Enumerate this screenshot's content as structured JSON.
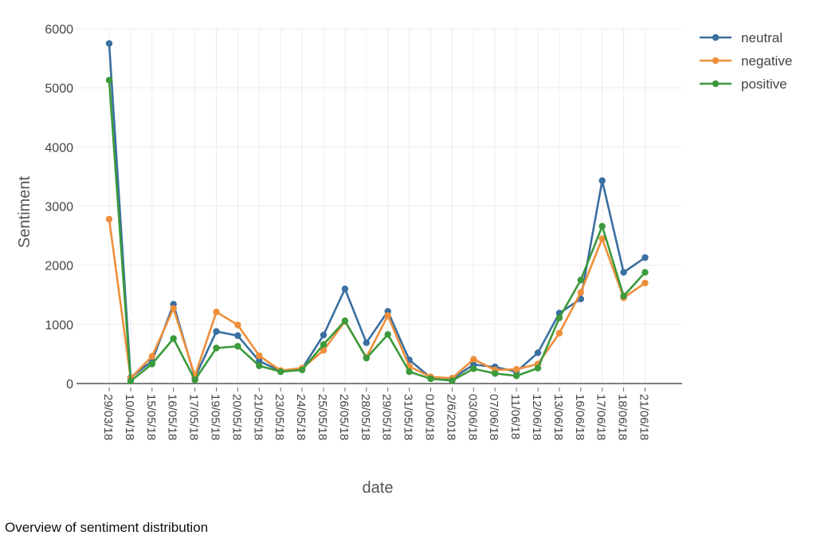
{
  "caption": "Overview of sentiment distribution",
  "chart_data": {
    "type": "line",
    "xlabel": "date",
    "ylabel": "Sentiment",
    "ylim": [
      0,
      6000
    ],
    "yticks": [
      0,
      1000,
      2000,
      3000,
      4000,
      5000,
      6000
    ],
    "grid": true,
    "legend_position": "top-right",
    "categories": [
      "29/03/18",
      "10/04/18",
      "15/05/18",
      "16/05/18",
      "17/05/18",
      "19/05/18",
      "20/05/18",
      "21/05/18",
      "23/05/18",
      "24/05/18",
      "25/05/18",
      "26/05/18",
      "28/05/18",
      "29/05/18",
      "31/05/18",
      "01/06/18",
      "2/6/2018",
      "03/06/18",
      "07/06/18",
      "11/06/18",
      "12/06/18",
      "13/06/18",
      "16/06/18",
      "17/06/18",
      "18/06/18",
      "21/06/18"
    ],
    "series": [
      {
        "name": "neutral",
        "color": "#3a6fa0",
        "values": [
          5750,
          100,
          380,
          1340,
          100,
          880,
          810,
          380,
          210,
          250,
          820,
          1600,
          690,
          1220,
          400,
          100,
          80,
          320,
          280,
          200,
          520,
          1190,
          1430,
          3430,
          1880,
          2130
        ]
      },
      {
        "name": "negative",
        "color": "#ef8f3a",
        "values": [
          2780,
          90,
          460,
          1270,
          130,
          1210,
          990,
          470,
          220,
          260,
          560,
          1050,
          440,
          1150,
          290,
          110,
          90,
          410,
          230,
          240,
          330,
          850,
          1540,
          2450,
          1450,
          1700
        ]
      },
      {
        "name": "positive",
        "color": "#3b9a3b",
        "values": [
          5130,
          40,
          330,
          760,
          60,
          600,
          630,
          300,
          200,
          230,
          660,
          1060,
          430,
          830,
          200,
          80,
          50,
          250,
          170,
          130,
          260,
          1110,
          1750,
          2660,
          1480,
          1880
        ]
      }
    ]
  }
}
